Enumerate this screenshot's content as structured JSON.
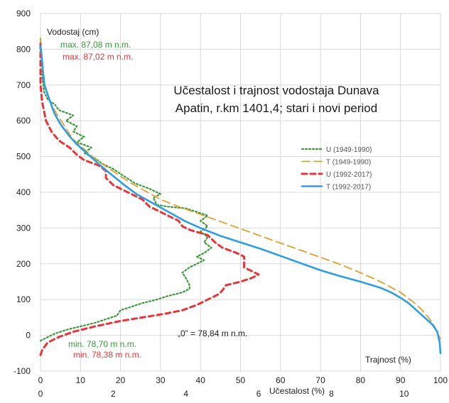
{
  "chart_data": {
    "type": "line",
    "title_lines": [
      "Učestalost i trajnost vodostaja Dunava",
      "Apatin, r.km 1401,4; stari i novi period"
    ],
    "ylabel": "Vodostaj (cm)",
    "x_primary_label": "Trajnost (%)",
    "x_secondary_label": "Učestalost (%)",
    "ylim": [
      -100,
      900
    ],
    "xlim": [
      0,
      100
    ],
    "x2lim": [
      0,
      11
    ],
    "y_ticks": [
      "900",
      "800",
      "700",
      "600",
      "500",
      "400",
      "300",
      "200",
      "100",
      "0",
      "-100"
    ],
    "x_ticks": [
      "0",
      "10",
      "20",
      "30",
      "40",
      "50",
      "60",
      "70",
      "80",
      "90",
      "100"
    ],
    "x2_ticks": [
      "0",
      "2",
      "4",
      "6",
      "8",
      "10"
    ],
    "grid": true,
    "legend_position": "right",
    "annotations": {
      "max_old": "max. 87,08 m n.m.",
      "max_new": "max. 87,02 m n.m.",
      "min_old": "min. 78,70 m n.m.",
      "min_new": "min. 78,38 m n.m.",
      "zero": "„0” = 78,84 m n.m."
    },
    "colors": {
      "green": "#3a9a3a",
      "orange": "#e0a030",
      "red": "#e8353a",
      "blue": "#2e9ee0",
      "grid": "#d9d9d9",
      "axis_text": "#555555",
      "label_text": "#222222"
    },
    "series": [
      {
        "name": "U (1949-1990)",
        "axis": "secondary",
        "color": "#3a9a3a",
        "dash": "dotted",
        "points": [
          [
            0,
            -15
          ],
          [
            0.2,
            -5
          ],
          [
            0.4,
            5
          ],
          [
            0.7,
            15
          ],
          [
            1.1,
            25
          ],
          [
            1.5,
            35
          ],
          [
            1.8,
            45
          ],
          [
            2.1,
            55
          ],
          [
            2.2,
            70
          ],
          [
            2.5,
            80
          ],
          [
            2.8,
            90
          ],
          [
            3.2,
            100
          ],
          [
            3.5,
            110
          ],
          [
            3.9,
            120
          ],
          [
            4.1,
            130
          ],
          [
            4.1,
            140
          ],
          [
            4.05,
            150
          ],
          [
            4.0,
            160
          ],
          [
            3.9,
            175
          ],
          [
            4.1,
            190
          ],
          [
            4.3,
            200
          ],
          [
            4.5,
            210
          ],
          [
            4.3,
            220
          ],
          [
            4.5,
            230
          ],
          [
            4.7,
            245
          ],
          [
            4.5,
            260
          ],
          [
            4.6,
            275
          ],
          [
            4.4,
            290
          ],
          [
            4.6,
            305
          ],
          [
            4.4,
            320
          ],
          [
            4.6,
            335
          ],
          [
            4.3,
            345
          ],
          [
            4.0,
            355
          ],
          [
            3.5,
            360
          ],
          [
            3.2,
            365
          ],
          [
            3.1,
            385
          ],
          [
            3.3,
            395
          ],
          [
            3.0,
            410
          ],
          [
            2.6,
            425
          ],
          [
            2.3,
            445
          ],
          [
            2.0,
            465
          ],
          [
            1.7,
            480
          ],
          [
            1.5,
            495
          ],
          [
            1.2,
            510
          ],
          [
            1.4,
            525
          ],
          [
            1.0,
            540
          ],
          [
            1.2,
            555
          ],
          [
            0.9,
            570
          ],
          [
            1.0,
            585
          ],
          [
            0.7,
            600
          ],
          [
            0.9,
            615
          ],
          [
            0.5,
            630
          ],
          [
            0.4,
            645
          ],
          [
            0.2,
            660
          ],
          [
            0.1,
            680
          ],
          [
            0.05,
            720
          ],
          [
            0.05,
            760
          ],
          [
            0.0,
            800
          ],
          [
            0.0,
            830
          ]
        ]
      },
      {
        "name": "T (1949-1990)",
        "axis": "primary",
        "color": "#e0a030",
        "dash": "dashed",
        "points": [
          [
            0,
            830
          ],
          [
            0.2,
            800
          ],
          [
            0.5,
            760
          ],
          [
            0.8,
            720
          ],
          [
            1.2,
            690
          ],
          [
            2.5,
            650
          ],
          [
            4,
            620
          ],
          [
            6,
            585
          ],
          [
            8,
            550
          ],
          [
            11,
            520
          ],
          [
            14,
            490
          ],
          [
            18,
            460
          ],
          [
            22,
            430
          ],
          [
            26,
            405
          ],
          [
            30,
            380
          ],
          [
            35,
            358
          ],
          [
            40,
            338
          ],
          [
            45,
            318
          ],
          [
            50,
            298
          ],
          [
            55,
            278
          ],
          [
            60,
            258
          ],
          [
            65,
            238
          ],
          [
            70,
            218
          ],
          [
            75,
            198
          ],
          [
            80,
            175
          ],
          [
            85,
            150
          ],
          [
            90,
            120
          ],
          [
            93,
            95
          ],
          [
            95,
            75
          ],
          [
            97,
            50
          ],
          [
            98.5,
            25
          ],
          [
            99.5,
            0
          ],
          [
            100,
            -10
          ]
        ]
      },
      {
        "name": "U (1992-2017)",
        "axis": "secondary",
        "color": "#e8353a",
        "dash": "dashed-bold",
        "points": [
          [
            0,
            -55
          ],
          [
            0.05,
            -40
          ],
          [
            0.2,
            -20
          ],
          [
            0.5,
            -5
          ],
          [
            0.9,
            10
          ],
          [
            1.5,
            25
          ],
          [
            2.2,
            40
          ],
          [
            2.8,
            50
          ],
          [
            3.4,
            60
          ],
          [
            3.9,
            70
          ],
          [
            4.3,
            85
          ],
          [
            4.6,
            100
          ],
          [
            4.9,
            115
          ],
          [
            5.0,
            125
          ],
          [
            5.1,
            140
          ],
          [
            5.5,
            150
          ],
          [
            5.8,
            160
          ],
          [
            6.0,
            170
          ],
          [
            5.8,
            180
          ],
          [
            5.6,
            190
          ],
          [
            5.6,
            200
          ],
          [
            5.6,
            210
          ],
          [
            5.6,
            220
          ],
          [
            5.4,
            230
          ],
          [
            5.0,
            245
          ],
          [
            4.8,
            260
          ],
          [
            4.6,
            280
          ],
          [
            4.1,
            295
          ],
          [
            3.9,
            305
          ],
          [
            3.8,
            320
          ],
          [
            3.6,
            330
          ],
          [
            3.4,
            340
          ],
          [
            3.2,
            350
          ],
          [
            3.0,
            360
          ],
          [
            2.8,
            380
          ],
          [
            2.5,
            395
          ],
          [
            2.2,
            410
          ],
          [
            2.0,
            420
          ],
          [
            1.8,
            440
          ],
          [
            1.8,
            460
          ],
          [
            1.6,
            475
          ],
          [
            1.2,
            490
          ],
          [
            1.0,
            505
          ],
          [
            0.8,
            525
          ],
          [
            0.5,
            545
          ],
          [
            0.3,
            570
          ],
          [
            0.15,
            600
          ],
          [
            0.05,
            650
          ],
          [
            0.0,
            700
          ],
          [
            0.0,
            800
          ],
          [
            0.0,
            820
          ]
        ]
      },
      {
        "name": "T (1992-2017)",
        "axis": "primary",
        "color": "#2e9ee0",
        "dash": "solid",
        "points": [
          [
            0,
            810
          ],
          [
            0.3,
            780
          ],
          [
            0.6,
            740
          ],
          [
            1,
            700
          ],
          [
            2.2,
            660
          ],
          [
            3.5,
            620
          ],
          [
            5,
            590
          ],
          [
            7,
            560
          ],
          [
            9,
            535
          ],
          [
            12,
            505
          ],
          [
            15,
            475
          ],
          [
            18,
            447
          ],
          [
            21,
            420
          ],
          [
            24,
            395
          ],
          [
            28,
            370
          ],
          [
            32,
            345
          ],
          [
            36,
            320
          ],
          [
            40,
            300
          ],
          [
            45,
            278
          ],
          [
            50,
            260
          ],
          [
            55,
            242
          ],
          [
            60,
            222
          ],
          [
            65,
            202
          ],
          [
            70,
            182
          ],
          [
            75,
            165
          ],
          [
            80,
            150
          ],
          [
            85,
            133
          ],
          [
            88,
            118
          ],
          [
            90,
            105
          ],
          [
            92,
            90
          ],
          [
            94,
            70
          ],
          [
            96,
            50
          ],
          [
            98,
            30
          ],
          [
            99.2,
            10
          ],
          [
            99.8,
            -20
          ],
          [
            100,
            -50
          ]
        ]
      }
    ]
  }
}
